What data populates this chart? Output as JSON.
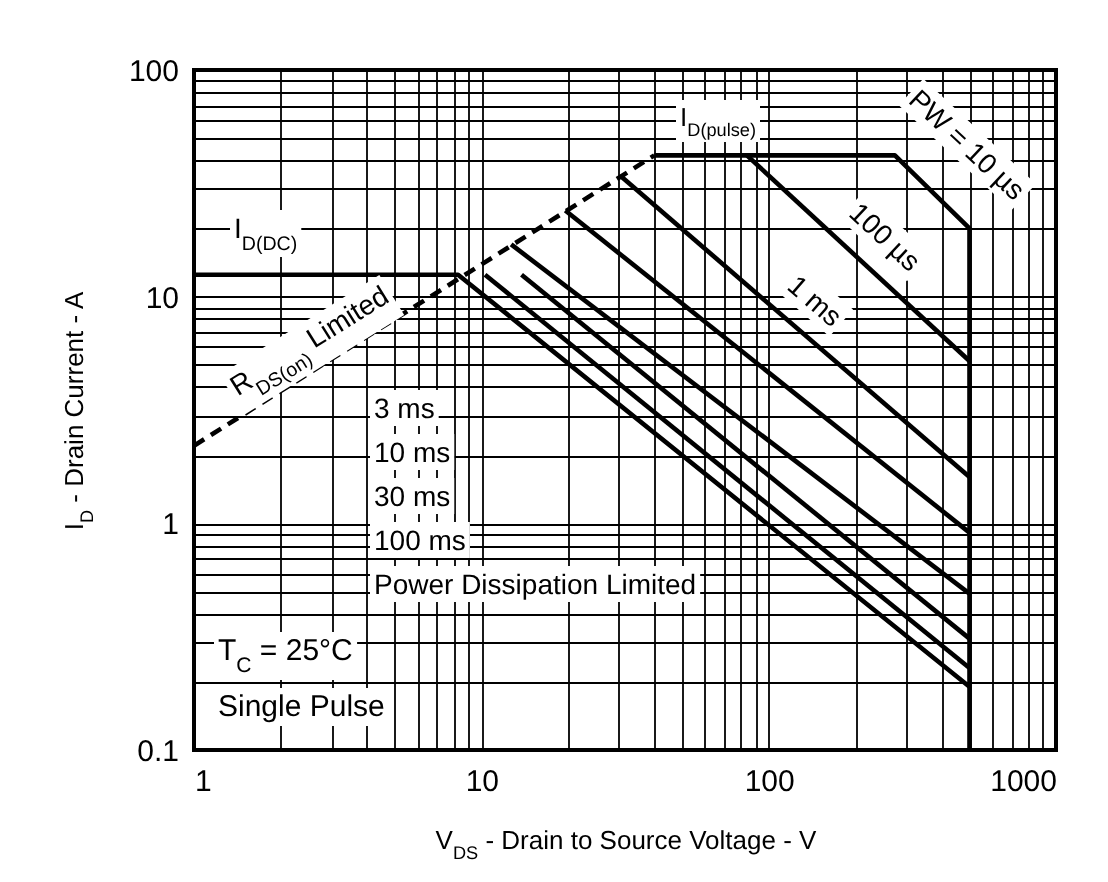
{
  "chart_data": {
    "type": "line",
    "xlabel": "V$_{DS}$ - Drain to Source Voltage - V",
    "ylabel": "I$_{D}$ - Drain Current - A",
    "log": "xy",
    "grid": true,
    "marker": "none",
    "xlim": [
      1,
      1000
    ],
    "ylim": [
      0.1,
      100
    ],
    "xticks": [
      1,
      {
        "value": 2,
        "label": null
      },
      {
        "value": 3,
        "label": null
      },
      {
        "value": 4,
        "label": null
      },
      {
        "value": 5,
        "label": null
      },
      {
        "value": 6,
        "label": null
      },
      {
        "value": 7,
        "label": null
      },
      {
        "value": 8,
        "label": null
      },
      {
        "value": 9,
        "label": null
      },
      10,
      {
        "value": 20,
        "label": null
      },
      {
        "value": 30,
        "label": null
      },
      {
        "value": 40,
        "label": null
      },
      {
        "value": 50,
        "label": null
      },
      {
        "value": 60,
        "label": null
      },
      {
        "value": 70,
        "label": null
      },
      {
        "value": 80,
        "label": null
      },
      {
        "value": 90,
        "label": null
      },
      100,
      {
        "value": 200,
        "label": null
      },
      {
        "value": 300,
        "label": null
      },
      {
        "value": 400,
        "label": null
      },
      {
        "value": 500,
        "label": null
      },
      {
        "value": 600,
        "label": null
      },
      {
        "value": 700,
        "label": null
      },
      {
        "value": 800,
        "label": null
      },
      {
        "value": 900,
        "label": null
      },
      1000
    ],
    "yticks": [
      0.1,
      {
        "value": 0.2,
        "label": null
      },
      {
        "value": 0.3,
        "label": null
      },
      {
        "value": 0.4,
        "label": null
      },
      {
        "value": 0.5,
        "label": null
      },
      {
        "value": 0.6,
        "label": null
      },
      {
        "value": 0.7,
        "label": null
      },
      {
        "value": 0.8,
        "label": null
      },
      {
        "value": 0.9,
        "label": null
      },
      1,
      {
        "value": 2,
        "label": null
      },
      {
        "value": 3,
        "label": null
      },
      {
        "value": 4,
        "label": null
      },
      {
        "value": 5,
        "label": null
      },
      {
        "value": 6,
        "label": null
      },
      {
        "value": 7,
        "label": null
      },
      {
        "value": 8,
        "label": null
      },
      {
        "value": 9,
        "label": null
      },
      10,
      {
        "value": 20,
        "label": null
      },
      {
        "value": 30,
        "label": null
      },
      {
        "value": 40,
        "label": null
      },
      {
        "value": 50,
        "label": null
      },
      {
        "value": 60,
        "label": null
      },
      {
        "value": 70,
        "label": null
      },
      {
        "value": 80,
        "label": null
      },
      {
        "value": 90,
        "label": null
      },
      100
    ],
    "series": [
      {
        "color": "#000000",
        "line_style": "solid",
        "x": [
          1,
          8.3,
          500
        ],
        "values": [
          12.5,
          12.5,
          0.19
        ]
      },
      {
        "color": "#000000",
        "line_style": "solid",
        "x": [
          10.3,
          500
        ],
        "values": [
          12.5,
          0.23
        ]
      },
      {
        "color": "#000000",
        "line_style": "solid",
        "x": [
          13.8,
          500
        ],
        "values": [
          12.5,
          0.31
        ]
      },
      {
        "color": "#000000",
        "line_style": "solid",
        "x": [
          12.7,
          500
        ],
        "values": [
          17,
          0.49
        ]
      },
      {
        "color": "#000000",
        "line_style": "solid",
        "x": [
          19.6,
          500
        ],
        "values": [
          24,
          0.91
        ]
      },
      {
        "color": "#000000",
        "line_style": "solid",
        "x": [
          30.6,
          500
        ],
        "values": [
          34,
          1.6
        ]
      },
      {
        "color": "#000000",
        "line_style": "solid",
        "x": [
          84,
          500
        ],
        "values": [
          42,
          5.2
        ]
      },
      {
        "color": "#000000",
        "line_style": "solid",
        "x": [
          40,
          275,
          500,
          500
        ],
        "values": [
          42,
          42,
          20,
          0.1
        ]
      },
      {
        "color": "#000000",
        "line_style": "dashed",
        "x": [
          1,
          40
        ],
        "values": [
          2.2,
          42
        ]
      }
    ],
    "annotations": [
      "I$_{D(DC)}$",
      "R$_{DS(on)}$ Limited",
      "I$_{D(pulse)}$",
      "PW = 10 µs",
      "100 µs",
      "1 ms",
      "3 ms",
      "10 ms",
      "30 ms",
      "100 ms",
      "Power Dissipation Limited",
      "T$_{C}$ = 25°C",
      "Single Pulse"
    ]
  }
}
